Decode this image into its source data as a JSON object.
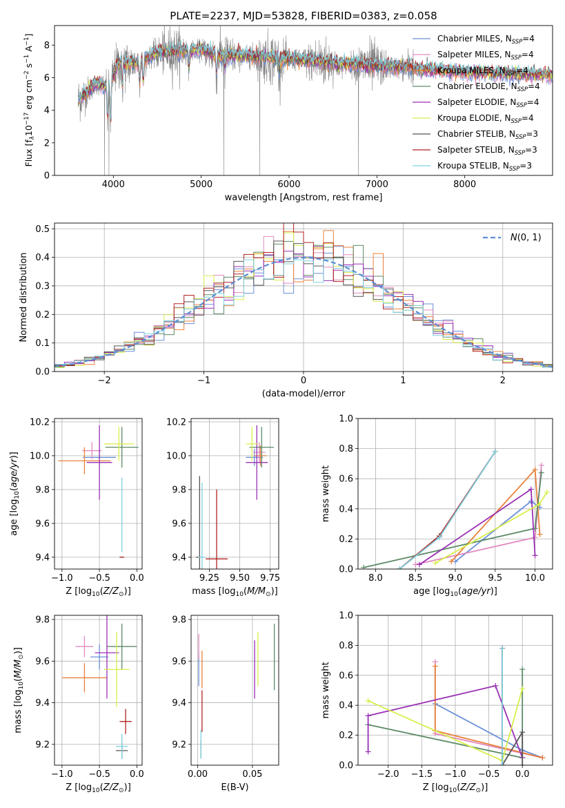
{
  "figure": {
    "title": "PLATE=2237, MJD=53828, FIBERID=0383, z=0.058"
  },
  "colors": {
    "chabrier_miles": "#6a8fd8",
    "salpeter_miles": "#e08abf",
    "kroupa_miles": "#e8803a",
    "chabrier_elodie": "#5c8a66",
    "salpeter_elodie": "#9a2fb5",
    "kroupa_elodie": "#d8ee4a",
    "chabrier_stelib": "#555555",
    "salpeter_stelib": "#b22222",
    "kroupa_stelib": "#7fd0de",
    "observed_spectrum": "#808080",
    "normal_curve": "#5b8ed6"
  },
  "chart_data": [
    {
      "id": "spectrum",
      "type": "line",
      "title": "PLATE=2237, MJD=53828, FIBERID=0383, z=0.058",
      "xlabel": "wavelength [Angstrom, rest frame]",
      "ylabel_parts": [
        "Flux [f",
        "λ",
        "10",
        "−17",
        " erg cm",
        "−2",
        " s",
        "−1",
        " A",
        "−1",
        "]"
      ],
      "xlim": [
        3330,
        9000
      ],
      "ylim": [
        0,
        9.2
      ],
      "xticks": [
        4000,
        5000,
        6000,
        7000,
        8000
      ],
      "yticks": [
        0,
        2,
        4,
        6,
        8
      ],
      "grid": false,
      "legend_placement": "upper-right",
      "legend": [
        {
          "name": "Chabrier MILES, N",
          "sub": "SSP",
          "suffix": "=4",
          "color_key": "chabrier_miles"
        },
        {
          "name": "Salpeter MILES, N",
          "sub": "SSP",
          "suffix": "=4",
          "color_key": "salpeter_miles"
        },
        {
          "name": "Kroupa MILES, N",
          "sub": "SSP",
          "suffix": "=4",
          "color_key": "kroupa_miles"
        },
        {
          "name": "Chabrier ELODIE, N",
          "sub": "SSP",
          "suffix": "=4",
          "color_key": "chabrier_elodie"
        },
        {
          "name": "Salpeter ELODIE, N",
          "sub": "SSP",
          "suffix": "=4",
          "color_key": "salpeter_elodie"
        },
        {
          "name": "Kroupa ELODIE, N",
          "sub": "SSP",
          "suffix": "=4",
          "color_key": "kroupa_elodie"
        },
        {
          "name": "Chabrier STELIB, N",
          "sub": "SSP",
          "suffix": "=3",
          "color_key": "chabrier_stelib"
        },
        {
          "name": "Salpeter STELIB, N",
          "sub": "SSP",
          "suffix": "=3",
          "color_key": "salpeter_stelib"
        },
        {
          "name": "Kroupa STELIB, N",
          "sub": "SSP",
          "suffix": "=3",
          "color_key": "kroupa_stelib"
        }
      ],
      "observed_range": [
        3600,
        7420
      ],
      "continuum_knots": [
        [
          3600,
          4.6
        ],
        [
          3800,
          5.6
        ],
        [
          3950,
          5.4
        ],
        [
          4050,
          6.8
        ],
        [
          4300,
          6.9
        ],
        [
          4500,
          7.5
        ],
        [
          5000,
          7.7
        ],
        [
          5200,
          7.3
        ],
        [
          5500,
          7.3
        ],
        [
          6000,
          7.1
        ],
        [
          6500,
          6.9
        ],
        [
          7000,
          6.7
        ],
        [
          7400,
          6.6
        ]
      ],
      "model_range": [
        3600,
        9000
      ],
      "model_tail_knots": [
        [
          7420,
          6.5
        ],
        [
          8000,
          6.3
        ],
        [
          8500,
          6.2
        ],
        [
          9000,
          6.1
        ]
      ],
      "absorption_lines": [
        [
          3934,
          3.2
        ],
        [
          3969,
          3.0
        ],
        [
          4102,
          5.2
        ],
        [
          4300,
          5.6
        ],
        [
          4340,
          5.5
        ],
        [
          4861,
          6.4
        ],
        [
          5175,
          6.1
        ],
        [
          5270,
          6.6
        ],
        [
          5890,
          6.2
        ],
        [
          6563,
          6.3
        ]
      ],
      "spikes_to_zero": [
        3900,
        3950,
        5257,
        5665,
        6790,
        7430
      ]
    },
    {
      "id": "residuals",
      "type": "line",
      "xlabel": "(data-model)/error",
      "ylabel": "Normed distribution",
      "xlim": [
        -2.5,
        2.5
      ],
      "ylim": [
        0,
        0.52
      ],
      "xticks": [
        -2,
        -1,
        0,
        1,
        2
      ],
      "xtick_labels": [
        "−2",
        "−1",
        "0",
        "1",
        "2"
      ],
      "yticks": [
        0.0,
        0.1,
        0.2,
        0.3,
        0.4,
        0.5
      ],
      "ytick_labels": [
        "0.0",
        "0.1",
        "0.2",
        "0.3",
        "0.4",
        "0.5"
      ],
      "grid": true,
      "legend_placement": "upper-right",
      "legend": [
        {
          "name": "N(0, 1)",
          "style": "dashed",
          "color_key": "normal_curve"
        }
      ],
      "bin_width": 0.1,
      "normal_mean": 0,
      "normal_sigma": 1
    },
    {
      "id": "age-vs-Z",
      "type": "scatter",
      "xlabel": "Z [log10(Z/Z⊙)]",
      "ylabel": "age  [log10(age/yr)]",
      "xlim": [
        -1.1,
        0.07
      ],
      "ylim": [
        9.33,
        10.22
      ],
      "xticks": [
        -1.0,
        -0.5,
        0.0
      ],
      "xtick_labels": [
        "−1.0",
        "−0.5",
        "0.0"
      ],
      "yticks": [
        9.4,
        9.6,
        9.8,
        10.0,
        10.2
      ],
      "ytick_labels": [
        "9.4",
        "9.6",
        "9.8",
        "10.0",
        "10.2"
      ],
      "grid": true,
      "points": [
        {
          "key": "chabrier_miles",
          "x": -0.5,
          "y": 9.99,
          "xerr": 0.22,
          "yerr": 0.05
        },
        {
          "key": "salpeter_miles",
          "x": -0.6,
          "y": 10.03,
          "xerr": 0.13,
          "yerr": 0.05
        },
        {
          "key": "kroupa_miles",
          "x": -0.7,
          "y": 9.97,
          "xerr": 0.35,
          "yerr": 0.08
        },
        {
          "key": "chabrier_elodie",
          "x": -0.2,
          "y": 10.05,
          "xerr": 0.22,
          "yerr": 0.12
        },
        {
          "key": "salpeter_elodie",
          "x": -0.5,
          "y": 9.96,
          "xerr": 0.17,
          "yerr": 0.22
        },
        {
          "key": "kroupa_elodie",
          "x": -0.24,
          "y": 10.07,
          "xerr": 0.2,
          "yerr": 0.1
        },
        {
          "key": "chabrier_stelib",
          "x": -0.2,
          "y": 9.4,
          "xerr": 0.03,
          "yerr": 0.0
        },
        {
          "key": "salpeter_stelib",
          "x": -0.2,
          "y": 9.4,
          "xerr": 0.03,
          "yerr": 0.0
        },
        {
          "key": "kroupa_stelib",
          "x": -0.2,
          "y": 9.65,
          "xerr": 0.0,
          "yerr": 0.22
        }
      ]
    },
    {
      "id": "age-vs-mass",
      "type": "scatter",
      "xlabel": "mass [log10(M/M⊙)]",
      "ylabel": "",
      "xlim": [
        9.1,
        9.82
      ],
      "ylim": [
        9.33,
        10.22
      ],
      "xticks": [
        9.25,
        9.5,
        9.75
      ],
      "xtick_labels": [
        "9.25",
        "9.50",
        "9.75"
      ],
      "yticks": [
        9.4,
        9.6,
        9.8,
        10.0,
        10.2
      ],
      "ytick_labels": [
        "9.4",
        "9.6",
        "9.8",
        "10.0",
        "10.2"
      ],
      "grid": true,
      "points": [
        {
          "key": "chabrier_miles",
          "x": 9.62,
          "y": 9.99,
          "xerr": 0.07,
          "yerr": 0.05
        },
        {
          "key": "salpeter_miles",
          "x": 9.66,
          "y": 10.02,
          "xerr": 0.05,
          "yerr": 0.06
        },
        {
          "key": "kroupa_miles",
          "x": 9.67,
          "y": 10.0,
          "xerr": 0.05,
          "yerr": 0.06
        },
        {
          "key": "chabrier_elodie",
          "x": 9.68,
          "y": 10.05,
          "xerr": 0.1,
          "yerr": 0.12
        },
        {
          "key": "salpeter_elodie",
          "x": 9.64,
          "y": 9.96,
          "xerr": 0.09,
          "yerr": 0.22
        },
        {
          "key": "kroupa_elodie",
          "x": 9.6,
          "y": 10.07,
          "xerr": 0.05,
          "yerr": 0.1
        },
        {
          "key": "chabrier_stelib",
          "x": 9.17,
          "y": 9.4,
          "xerr": 0.03,
          "yerr": 0.48
        },
        {
          "key": "salpeter_stelib",
          "x": 9.31,
          "y": 9.39,
          "xerr": 0.09,
          "yerr": 0.41
        },
        {
          "key": "kroupa_stelib",
          "x": 9.19,
          "y": 9.4,
          "xerr": 0.03,
          "yerr": 0.44
        }
      ]
    },
    {
      "id": "weight-vs-age",
      "type": "line",
      "xlabel": "age  [log10(age/yr)]",
      "ylabel": "mass weight",
      "xlim": [
        7.78,
        10.22
      ],
      "ylim": [
        0,
        1.0
      ],
      "xticks": [
        8.0,
        8.5,
        9.0,
        9.5,
        10.0
      ],
      "xtick_labels": [
        "8.0",
        "8.5",
        "9.0",
        "9.5",
        "10.0"
      ],
      "yticks": [
        0.0,
        0.2,
        0.4,
        0.6,
        0.8,
        1.0
      ],
      "ytick_labels": [
        "0.0",
        "0.2",
        "0.4",
        "0.6",
        "0.8",
        "1.0"
      ],
      "grid": true,
      "series": [
        {
          "key": "chabrier_miles",
          "x": [
            9.0,
            9.95,
            10.06
          ],
          "y": [
            0.05,
            0.45,
            0.41
          ]
        },
        {
          "key": "salpeter_miles",
          "x": [
            8.5,
            10.0,
            10.08
          ],
          "y": [
            0.03,
            0.21,
            0.69
          ]
        },
        {
          "key": "kroupa_miles",
          "x": [
            8.95,
            10.0,
            10.06
          ],
          "y": [
            0.05,
            0.66,
            0.23
          ]
        },
        {
          "key": "chabrier_elodie",
          "x": [
            7.85,
            10.0,
            10.08
          ],
          "y": [
            0.01,
            0.27,
            0.64
          ]
        },
        {
          "key": "salpeter_elodie",
          "x": [
            8.55,
            9.95,
            10.0
          ],
          "y": [
            0.03,
            0.53,
            0.09
          ]
        },
        {
          "key": "kroupa_elodie",
          "x": [
            8.75,
            10.05,
            10.15
          ],
          "y": [
            0.04,
            0.43,
            0.51
          ]
        },
        {
          "key": "chabrier_stelib",
          "x": [
            8.3,
            8.8,
            9.5
          ],
          "y": [
            0.0,
            0.22,
            0.78
          ]
        },
        {
          "key": "salpeter_stelib",
          "x": [
            8.3,
            8.8,
            9.5
          ],
          "y": [
            0.0,
            0.22,
            0.78
          ]
        },
        {
          "key": "kroupa_stelib",
          "x": [
            8.3,
            8.8,
            9.5
          ],
          "y": [
            0.0,
            0.21,
            0.78
          ]
        }
      ]
    },
    {
      "id": "mass-vs-Z",
      "type": "scatter",
      "xlabel": "Z [log10(Z/Z⊙)]",
      "ylabel": "mass [log10(M/M⊙)]",
      "xlim": [
        -1.1,
        0.07
      ],
      "ylim": [
        9.1,
        9.82
      ],
      "xticks": [
        -1.0,
        -0.5,
        0.0
      ],
      "xtick_labels": [
        "−1.0",
        "−0.5",
        "0.0"
      ],
      "yticks": [
        9.2,
        9.4,
        9.6,
        9.8
      ],
      "ytick_labels": [
        "9.2",
        "9.4",
        "9.6",
        "9.8"
      ],
      "grid": true,
      "points": [
        {
          "key": "chabrier_miles",
          "x": -0.5,
          "y": 9.62,
          "xerr": 0.12,
          "yerr": 0.06
        },
        {
          "key": "salpeter_miles",
          "x": -0.7,
          "y": 9.67,
          "xerr": 0.12,
          "yerr": 0.05
        },
        {
          "key": "kroupa_miles",
          "x": -0.7,
          "y": 9.52,
          "xerr": 0.3,
          "yerr": 0.07
        },
        {
          "key": "chabrier_elodie",
          "x": -0.2,
          "y": 9.67,
          "xerr": 0.2,
          "yerr": 0.11
        },
        {
          "key": "salpeter_elodie",
          "x": -0.4,
          "y": 9.64,
          "xerr": 0.16,
          "yerr": 0.22
        },
        {
          "key": "kroupa_elodie",
          "x": -0.27,
          "y": 9.56,
          "xerr": 0.17,
          "yerr": 0.18
        },
        {
          "key": "chabrier_stelib",
          "x": -0.2,
          "y": 9.17,
          "xerr": 0.08,
          "yerr": 0.04
        },
        {
          "key": "salpeter_stelib",
          "x": -0.15,
          "y": 9.31,
          "xerr": 0.08,
          "yerr": 0.06
        },
        {
          "key": "kroupa_stelib",
          "x": -0.2,
          "y": 9.19,
          "xerr": 0.08,
          "yerr": 0.06
        }
      ]
    },
    {
      "id": "mass-vs-ebv",
      "type": "scatter",
      "xlabel": "E(B-V)",
      "ylabel": "",
      "xlim": [
        -0.006,
        0.074
      ],
      "ylim": [
        9.1,
        9.82
      ],
      "xticks": [
        0.0,
        0.05
      ],
      "xtick_labels": [
        "0.00",
        "0.05"
      ],
      "yticks": [
        9.2,
        9.4,
        9.6,
        9.8
      ],
      "ytick_labels": [
        "9.2",
        "9.4",
        "9.6",
        "9.8"
      ],
      "grid": true,
      "points": [
        {
          "key": "chabrier_miles",
          "x": 0.001,
          "y": 9.56,
          "xerr": 0.0,
          "yerr": 0.08
        },
        {
          "key": "salpeter_miles",
          "x": 0.001,
          "y": 9.67,
          "xerr": 0.0,
          "yerr": 0.06
        },
        {
          "key": "kroupa_miles",
          "x": 0.004,
          "y": 9.56,
          "xerr": 0.0,
          "yerr": 0.09
        },
        {
          "key": "chabrier_elodie",
          "x": 0.07,
          "y": 9.62,
          "xerr": 0.0,
          "yerr": 0.16
        },
        {
          "key": "salpeter_elodie",
          "x": 0.052,
          "y": 9.56,
          "xerr": 0.0,
          "yerr": 0.14
        },
        {
          "key": "kroupa_elodie",
          "x": 0.055,
          "y": 9.61,
          "xerr": 0.0,
          "yerr": 0.13
        },
        {
          "key": "chabrier_stelib",
          "x": 0.003,
          "y": 9.18,
          "xerr": 0.0,
          "yerr": 0.04
        },
        {
          "key": "salpeter_stelib",
          "x": 0.004,
          "y": 9.36,
          "xerr": 0.0,
          "yerr": 0.1
        },
        {
          "key": "kroupa_stelib",
          "x": 0.003,
          "y": 9.2,
          "xerr": 0.0,
          "yerr": 0.07
        }
      ]
    },
    {
      "id": "weight-vs-Z",
      "type": "line",
      "xlabel": "Z [log10(Z/Z⊙)]",
      "ylabel": "mass weight",
      "xlim": [
        -2.45,
        0.45
      ],
      "ylim": [
        0,
        1.0
      ],
      "xticks": [
        -2.0,
        -1.5,
        -1.0,
        -0.5,
        0.0
      ],
      "xtick_labels": [
        "−2.0",
        "−1.5",
        "−1.0",
        "−0.5",
        "0.0"
      ],
      "yticks": [
        0.0,
        0.2,
        0.4,
        0.6,
        0.8,
        1.0
      ],
      "ytick_labels": [
        "0.0",
        "0.2",
        "0.4",
        "0.6",
        "0.8",
        "1.0"
      ],
      "grid": true,
      "series": [
        {
          "key": "chabrier_miles",
          "x": [
            -1.3,
            0.0,
            0.3
          ],
          "y": [
            0.41,
            0.1,
            0.05
          ]
        },
        {
          "key": "salpeter_miles",
          "x": [
            -1.3,
            -1.3,
            0.3
          ],
          "y": [
            0.69,
            0.21,
            0.05
          ]
        },
        {
          "key": "kroupa_miles",
          "x": [
            -1.3,
            -1.3,
            0.3
          ],
          "y": [
            0.66,
            0.23,
            0.05
          ]
        },
        {
          "key": "chabrier_elodie",
          "x": [
            -2.3,
            0.0,
            0.0
          ],
          "y": [
            0.27,
            0.05,
            0.64
          ]
        },
        {
          "key": "salpeter_elodie",
          "x": [
            -2.3,
            -2.3,
            -0.4,
            0.0
          ],
          "y": [
            0.09,
            0.33,
            0.53,
            0.05
          ]
        },
        {
          "key": "kroupa_elodie",
          "x": [
            -2.3,
            -0.3,
            0.0
          ],
          "y": [
            0.43,
            0.03,
            0.51
          ]
        },
        {
          "key": "chabrier_stelib",
          "x": [
            -0.3,
            -0.3,
            0.0,
            0.0
          ],
          "y": [
            0.78,
            0.0,
            0.22,
            0.0
          ]
        },
        {
          "key": "salpeter_stelib",
          "x": [
            -0.3,
            -0.3
          ],
          "y": [
            0.78,
            0.0
          ]
        },
        {
          "key": "kroupa_stelib",
          "x": [
            -0.3,
            -0.3
          ],
          "y": [
            0.78,
            0.0
          ]
        }
      ]
    }
  ]
}
